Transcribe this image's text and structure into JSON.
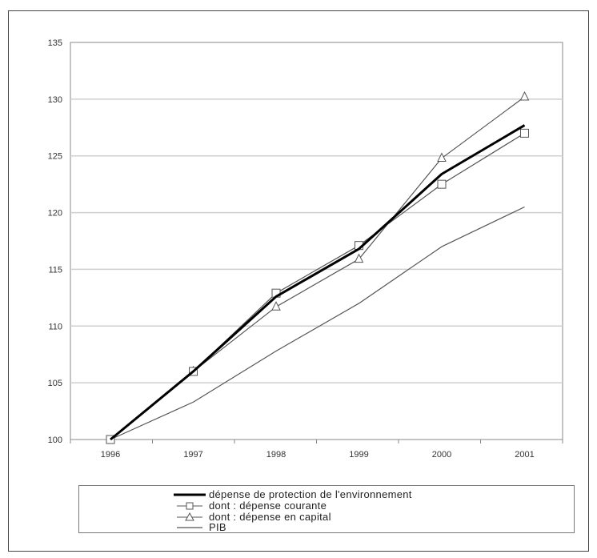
{
  "chart_data": {
    "type": "line",
    "x": [
      "1996",
      "1997",
      "1998",
      "1999",
      "2000",
      "2001"
    ],
    "ylim": [
      100,
      135
    ],
    "yticks": [
      "100",
      "105",
      "110",
      "115",
      "120",
      "125",
      "130",
      "135"
    ],
    "grid": {
      "horizontal": true,
      "vertical": false
    },
    "legend_position": "bottom",
    "series": [
      {
        "name": "dépense de protection de l'environnement",
        "values": [
          100,
          106,
          112.6,
          116.8,
          123.4,
          127.7
        ],
        "color": "#000000",
        "style": "thick",
        "marker": "none"
      },
      {
        "name": "dont : dépense courante",
        "values": [
          100,
          106,
          112.9,
          117.1,
          122.5,
          127.0
        ],
        "color": "#555555",
        "style": "thin",
        "marker": "square"
      },
      {
        "name": "dont : dépense en capital",
        "values": [
          100,
          106,
          111.7,
          115.9,
          124.8,
          130.2
        ],
        "color": "#555555",
        "style": "thin",
        "marker": "triangle"
      },
      {
        "name": "PIB",
        "values": [
          100,
          103.3,
          107.8,
          112.0,
          117.0,
          120.5
        ],
        "color": "#555555",
        "style": "thin",
        "marker": "none"
      }
    ]
  }
}
